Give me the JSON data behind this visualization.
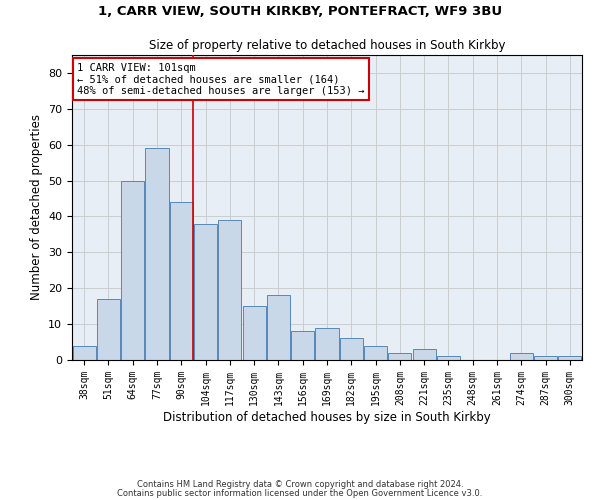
{
  "title1": "1, CARR VIEW, SOUTH KIRKBY, PONTEFRACT, WF9 3BU",
  "title2": "Size of property relative to detached houses in South Kirkby",
  "xlabel": "Distribution of detached houses by size in South Kirkby",
  "ylabel": "Number of detached properties",
  "categories": [
    "38sqm",
    "51sqm",
    "64sqm",
    "77sqm",
    "90sqm",
    "104sqm",
    "117sqm",
    "130sqm",
    "143sqm",
    "156sqm",
    "169sqm",
    "182sqm",
    "195sqm",
    "208sqm",
    "221sqm",
    "235sqm",
    "248sqm",
    "261sqm",
    "274sqm",
    "287sqm",
    "300sqm"
  ],
  "values": [
    4,
    17,
    50,
    59,
    44,
    38,
    39,
    15,
    18,
    8,
    9,
    6,
    4,
    2,
    3,
    1,
    0,
    0,
    2,
    1,
    1
  ],
  "bar_color": "#c8d8e8",
  "bar_edge_color": "#5588bb",
  "property_line_idx": 4.5,
  "property_line_color": "#cc0000",
  "annotation_text": "1 CARR VIEW: 101sqm\n← 51% of detached houses are smaller (164)\n48% of semi-detached houses are larger (153) →",
  "annotation_box_color": "#ffffff",
  "annotation_box_edge_color": "#cc0000",
  "ylim": [
    0,
    85
  ],
  "yticks": [
    0,
    10,
    20,
    30,
    40,
    50,
    60,
    70,
    80
  ],
  "grid_color": "#cccccc",
  "bg_color": "#e8eef5",
  "footnote1": "Contains HM Land Registry data © Crown copyright and database right 2024.",
  "footnote2": "Contains public sector information licensed under the Open Government Licence v3.0."
}
